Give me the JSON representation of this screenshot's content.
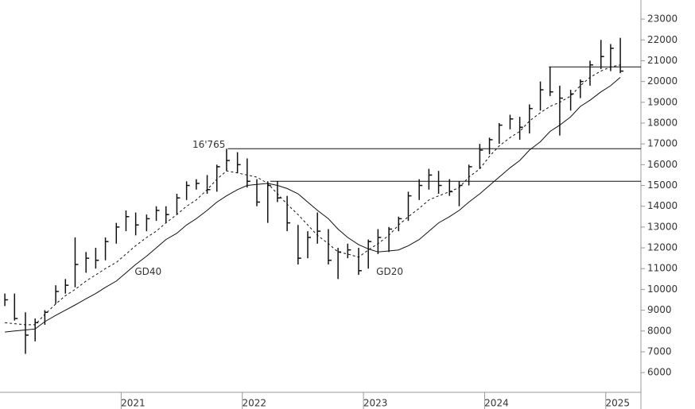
{
  "chart_data": {
    "type": "ohlc",
    "x": [
      2020.04,
      2020.12,
      2020.21,
      2020.29,
      2020.37,
      2020.46,
      2020.54,
      2020.62,
      2020.71,
      2020.79,
      2020.87,
      2020.96,
      2021.04,
      2021.12,
      2021.21,
      2021.29,
      2021.37,
      2021.46,
      2021.54,
      2021.62,
      2021.71,
      2021.79,
      2021.87,
      2021.96,
      2022.04,
      2022.12,
      2022.21,
      2022.29,
      2022.37,
      2022.46,
      2022.54,
      2022.62,
      2022.71,
      2022.79,
      2022.87,
      2022.96,
      2023.04,
      2023.12,
      2023.21,
      2023.29,
      2023.37,
      2023.46,
      2023.54,
      2023.62,
      2023.71,
      2023.79,
      2023.87,
      2023.96,
      2024.04,
      2024.12,
      2024.21,
      2024.29,
      2024.37,
      2024.46,
      2024.54,
      2024.62,
      2024.71,
      2024.79,
      2024.87,
      2024.96,
      2025.04,
      2025.12
    ],
    "high": [
      9800,
      9800,
      8900,
      8600,
      9000,
      10200,
      10500,
      12500,
      11800,
      12000,
      12500,
      13200,
      13800,
      13700,
      13600,
      14000,
      14000,
      14600,
      15200,
      15300,
      15500,
      16000,
      16765,
      16600,
      16300,
      15300,
      15200,
      15200,
      14500,
      13100,
      12800,
      13700,
      12900,
      12000,
      12200,
      12000,
      12400,
      12900,
      13000,
      13500,
      14700,
      15300,
      15800,
      15700,
      15300,
      15200,
      16000,
      17000,
      17300,
      18000,
      18400,
      18300,
      18900,
      20000,
      20700,
      19800,
      19600,
      20100,
      21000,
      22000,
      21800,
      22100
    ],
    "low": [
      9200,
      8500,
      6900,
      7500,
      8300,
      9300,
      9800,
      10100,
      10800,
      11000,
      11400,
      12200,
      12800,
      12600,
      12800,
      13300,
      13200,
      13600,
      14300,
      14800,
      14600,
      14700,
      15700,
      15600,
      14900,
      14000,
      13200,
      14200,
      12800,
      11200,
      11500,
      12200,
      11200,
      10500,
      11500,
      10700,
      11000,
      11700,
      11800,
      12800,
      13300,
      14300,
      14800,
      14600,
      14500,
      14000,
      15000,
      15800,
      16500,
      17000,
      17700,
      17200,
      17500,
      18600,
      19300,
      17400,
      18600,
      19200,
      19800,
      20600,
      20500,
      20400
    ],
    "close": [
      9500,
      8600,
      7800,
      8400,
      8900,
      9900,
      10200,
      11200,
      11500,
      11400,
      12300,
      13000,
      13500,
      13100,
      13400,
      13800,
      13600,
      14400,
      15000,
      15100,
      14800,
      15900,
      16200,
      16000,
      15200,
      14200,
      15000,
      14400,
      13200,
      11500,
      12500,
      12800,
      11400,
      11800,
      11900,
      10900,
      12300,
      12500,
      12900,
      13400,
      14500,
      15000,
      15500,
      15000,
      14700,
      15000,
      15900,
      16700,
      17200,
      17900,
      18200,
      17800,
      18700,
      19600,
      19500,
      19200,
      19400,
      20000,
      20800,
      21200,
      21600,
      20500
    ],
    "color": "#111111",
    "series": [
      {
        "name": "GD20",
        "style": "dashed",
        "color": "#111111",
        "values": [
          8400,
          8350,
          8300,
          8300,
          8800,
          9300,
          9700,
          10000,
          10400,
          10700,
          11000,
          11300,
          11700,
          12100,
          12500,
          12800,
          13200,
          13600,
          14000,
          14300,
          14800,
          15300,
          15700,
          15600,
          15500,
          15400,
          15100,
          14600,
          14100,
          13600,
          13100,
          12600,
          12200,
          11800,
          11700,
          11550,
          11900,
          12200,
          12600,
          13100,
          13500,
          13900,
          14300,
          14500,
          14700,
          14900,
          15400,
          15800,
          16400,
          16900,
          17300,
          17600,
          18100,
          18500,
          18800,
          19000,
          19300,
          19800,
          20200,
          20500,
          20700,
          20800
        ]
      },
      {
        "name": "GD40",
        "style": "solid",
        "color": "#111111",
        "values": [
          7950,
          8000,
          8050,
          8100,
          8450,
          8750,
          9000,
          9250,
          9550,
          9800,
          10100,
          10400,
          10800,
          11200,
          11600,
          12000,
          12400,
          12700,
          13100,
          13400,
          13800,
          14200,
          14500,
          14800,
          15000,
          15050,
          15100,
          15000,
          14850,
          14600,
          14200,
          13800,
          13400,
          12900,
          12500,
          12150,
          11950,
          11800,
          11850,
          11900,
          12100,
          12400,
          12800,
          13200,
          13500,
          13800,
          14200,
          14600,
          15000,
          15400,
          15850,
          16200,
          16700,
          17100,
          17600,
          17900,
          18300,
          18800,
          19100,
          19500,
          19800,
          20200
        ]
      }
    ],
    "levels": [
      {
        "value": 16765,
        "start": 2021.88,
        "label": "16'765"
      },
      {
        "value": 15200,
        "start": 2022.23
      },
      {
        "value": 20700,
        "start": 2024.53
      }
    ],
    "xlim": [
      2020.0,
      2025.29
    ],
    "xticks": [
      2021,
      2022,
      2023,
      2024,
      2025
    ],
    "ylim": [
      5050,
      23920
    ],
    "yticks": [
      6000,
      7000,
      8000,
      9000,
      10000,
      11000,
      12000,
      13000,
      14000,
      15000,
      16000,
      17000,
      18000,
      19000,
      20000,
      21000,
      22000,
      23000
    ]
  }
}
